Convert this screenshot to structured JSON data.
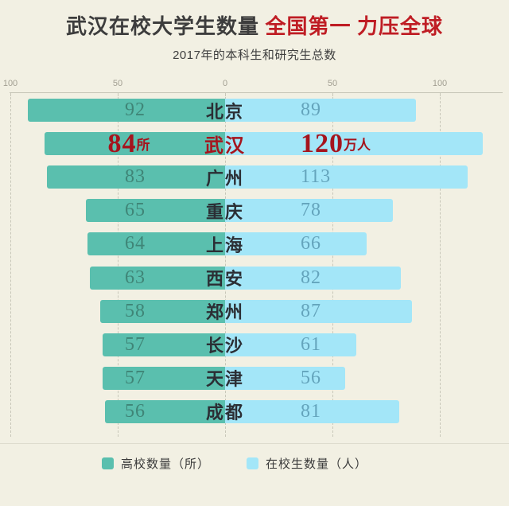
{
  "header": {
    "title_black": "武汉在校大学生数量",
    "title_red": "全国第一 力压全球",
    "subtitle": "2017年的本科生和研究生总数"
  },
  "axis": {
    "tick_labels": [
      "100",
      "50",
      "0",
      "50",
      "100"
    ]
  },
  "legend": {
    "items": [
      {
        "label": "高校数量（所）",
        "color": "#5abfae"
      },
      {
        "label": "在校生数量（人）",
        "color": "#a3e6f8"
      }
    ]
  },
  "colors": {
    "background": "#f2f0e3",
    "bar_left": "#5abfae",
    "bar_right": "#a3e6f8",
    "value_left_text": "#3f8577",
    "value_right_text": "#64a4bc",
    "city_text": "#2b2e34",
    "highlight_red": "#a5141d",
    "title_red": "#bf1d24",
    "title_dark": "#3d3d3d",
    "axis_line": "#c6c5b7",
    "axis_label": "#a29f92"
  },
  "chart_data": {
    "type": "bar",
    "variant": "diverging-horizontal",
    "title": "武汉在校大学生数量 全国第一 力压全球",
    "subtitle": "2017年的本科生和研究生总数",
    "grid": "dashed-vertical",
    "axis_range_each_side": [
      0,
      100
    ],
    "axis_tick_values": [
      100,
      50,
      0,
      50,
      100
    ],
    "categories": [
      "北京",
      "武汉",
      "广州",
      "重庆",
      "上海",
      "西安",
      "郑州",
      "长沙",
      "天津",
      "成都"
    ],
    "series": [
      {
        "name": "高校数量（所）",
        "side": "left",
        "color": "#5abfae",
        "values": [
          92,
          84,
          83,
          65,
          64,
          63,
          58,
          57,
          57,
          56
        ]
      },
      {
        "name": "在校生数量（人）",
        "side": "right",
        "color": "#a3e6f8",
        "values": [
          89,
          120,
          113,
          78,
          66,
          82,
          87,
          61,
          56,
          81
        ]
      }
    ],
    "rows": [
      {
        "city": "北京",
        "universities": "92",
        "students": "89",
        "highlight": false,
        "left_unit": "",
        "right_unit": ""
      },
      {
        "city": "武汉",
        "universities": "84",
        "students": "120",
        "highlight": true,
        "left_unit": "所",
        "right_unit": "万人"
      },
      {
        "city": "广州",
        "universities": "83",
        "students": "113",
        "highlight": false,
        "left_unit": "",
        "right_unit": ""
      },
      {
        "city": "重庆",
        "universities": "65",
        "students": "78",
        "highlight": false,
        "left_unit": "",
        "right_unit": ""
      },
      {
        "city": "上海",
        "universities": "64",
        "students": "66",
        "highlight": false,
        "left_unit": "",
        "right_unit": ""
      },
      {
        "city": "西安",
        "universities": "63",
        "students": "82",
        "highlight": false,
        "left_unit": "",
        "right_unit": ""
      },
      {
        "city": "郑州",
        "universities": "58",
        "students": "87",
        "highlight": false,
        "left_unit": "",
        "right_unit": ""
      },
      {
        "city": "长沙",
        "universities": "57",
        "students": "61",
        "highlight": false,
        "left_unit": "",
        "right_unit": ""
      },
      {
        "city": "天津",
        "universities": "57",
        "students": "56",
        "highlight": false,
        "left_unit": "",
        "right_unit": ""
      },
      {
        "city": "成都",
        "universities": "56",
        "students": "81",
        "highlight": false,
        "left_unit": "",
        "right_unit": ""
      }
    ],
    "highlight": {
      "category": "武汉",
      "row_index": 1,
      "left_display": "84所",
      "right_display": "120万人",
      "text_color": "#a5141d"
    },
    "legend_position": "bottom"
  }
}
